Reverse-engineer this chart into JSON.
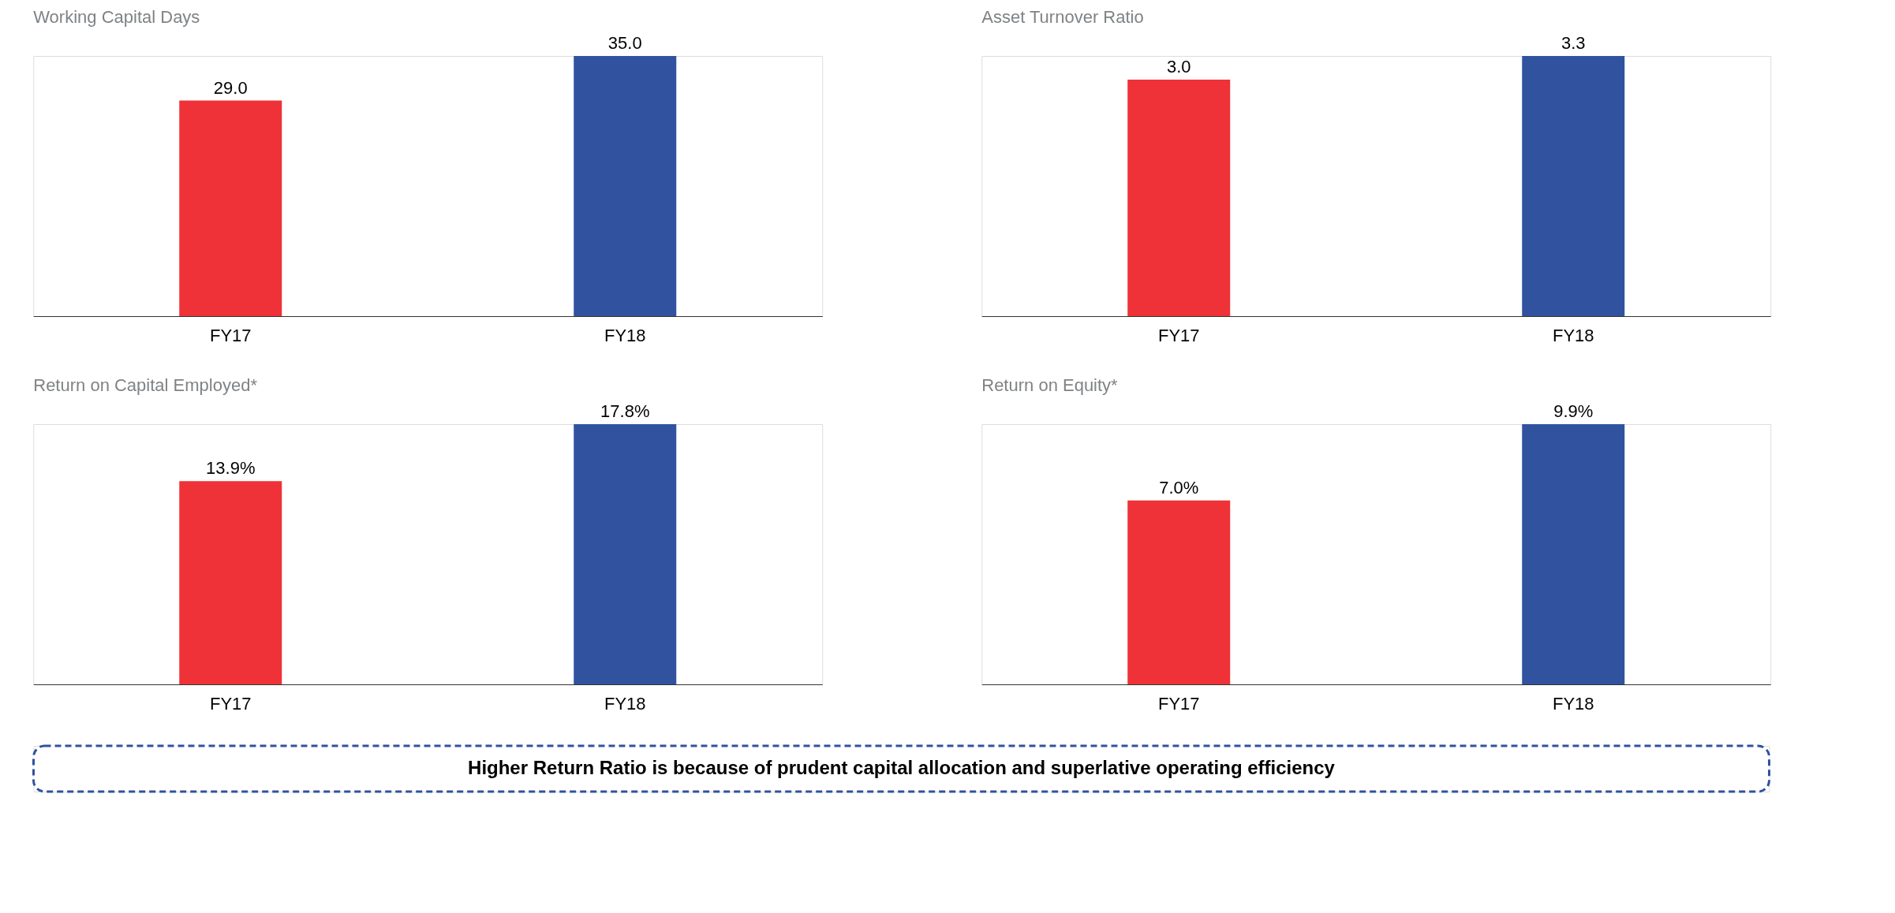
{
  "chart_data": [
    {
      "type": "bar",
      "title": "Working Capital Days",
      "categories": [
        "FY17",
        "FY18"
      ],
      "values": [
        29.0,
        35.0
      ],
      "colors": [
        "#ee3237",
        "#30529f"
      ],
      "value_labels": [
        "29.0",
        "35.0"
      ],
      "tick_labels": "x",
      "grid": false
    },
    {
      "type": "bar",
      "title": "Asset Turnover Ratio",
      "categories": [
        "FY17",
        "FY18"
      ],
      "values": [
        3.0,
        3.3
      ],
      "colors": [
        "#ee3237",
        "#30529f"
      ],
      "value_labels": [
        "3.0",
        "3.3"
      ],
      "tick_labels": "x",
      "grid": false
    },
    {
      "type": "bar",
      "title": "Return on Capital Employed*",
      "categories": [
        "FY17",
        "FY18"
      ],
      "values": [
        13.9,
        17.8
      ],
      "colors": [
        "#ee3237",
        "#30529f"
      ],
      "value_labels": [
        "13.9%",
        "17.8%"
      ],
      "tick_labels": "x",
      "grid": false
    },
    {
      "type": "bar",
      "title": "Return on Equity*",
      "categories": [
        "FY17",
        "FY18"
      ],
      "values": [
        7.0,
        9.9
      ],
      "colors": [
        "#ee3237",
        "#30529f"
      ],
      "value_labels": [
        "7.0%",
        "9.9%"
      ],
      "tick_labels": "x",
      "grid": false,
      "annotations": [
        "Higher Return Ratio is because of prudent capital allocation and superlative operating efficiency"
      ]
    }
  ]
}
